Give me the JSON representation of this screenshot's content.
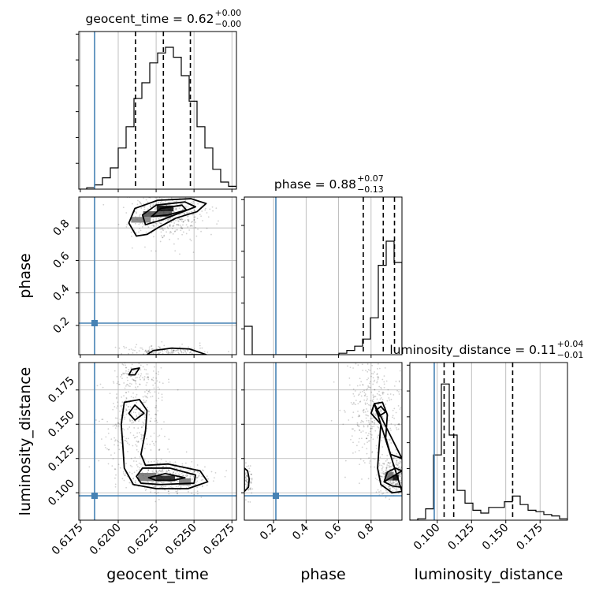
{
  "chart_data": {
    "type": "corner",
    "parameters": [
      "geocent_time",
      "phase",
      "luminosity_distance"
    ],
    "injection_color": "#4682b4",
    "grid": true,
    "titles": [
      {
        "param": "geocent_time",
        "text": "geocent_time = 0.62",
        "plus": "+0.00",
        "minus": "−0.00"
      },
      {
        "param": "phase",
        "text": "phase = 0.88",
        "plus": "+0.07",
        "minus": "−0.13"
      },
      {
        "param": "luminosity_distance",
        "text": "luminosity_distance = 0.11",
        "plus": "+0.04",
        "minus": "−0.01"
      }
    ],
    "axes": {
      "geocent_time": {
        "range": [
          0.6174,
          0.6278
        ],
        "ticks": [
          0.6175,
          0.62,
          0.6225,
          0.625,
          0.6275
        ],
        "tick_labels": [
          "0.6175",
          "0.6200",
          "0.6225",
          "0.6250",
          "0.6275"
        ],
        "label": "geocent_time"
      },
      "phase": {
        "range": [
          0.02,
          0.99
        ],
        "ticks": [
          0.2,
          0.4,
          0.6,
          0.8
        ],
        "tick_labels": [
          "0.2",
          "0.4",
          "0.6",
          "0.8"
        ],
        "label": "phase"
      },
      "luminosity_distance": {
        "range": [
          0.08,
          0.195
        ],
        "ticks": [
          0.1,
          0.125,
          0.15,
          0.175
        ],
        "tick_labels": [
          "0.100",
          "0.125",
          "0.150",
          "0.175"
        ],
        "label": "luminosity_distance"
      }
    },
    "injection": {
      "geocent_time": 0.61844,
      "phase": 0.214,
      "luminosity_distance": 0.0978
    },
    "quantiles": {
      "geocent_time": [
        0.62114,
        0.62298,
        0.62476
      ],
      "phase": [
        0.752,
        0.875,
        0.944
      ],
      "luminosity_distance": [
        0.105,
        0.112,
        0.155
      ]
    },
    "histograms": {
      "geocent_time": {
        "edges": [
          0.6174,
          0.61792,
          0.61844,
          0.61896,
          0.61948,
          0.62,
          0.62052,
          0.62104,
          0.62156,
          0.62208,
          0.6226,
          0.62312,
          0.62364,
          0.62416,
          0.62468,
          0.6252,
          0.62572,
          0.62624,
          0.62676,
          0.62728,
          0.6278
        ],
        "counts": [
          0.0,
          0.01,
          0.03,
          0.08,
          0.15,
          0.29,
          0.44,
          0.64,
          0.75,
          0.89,
          0.96,
          1.0,
          0.93,
          0.8,
          0.62,
          0.44,
          0.29,
          0.14,
          0.05,
          0.02
        ]
      },
      "phase": {
        "edges": [
          0.02,
          0.0685,
          0.117,
          0.1655,
          0.214,
          0.2625,
          0.311,
          0.3595,
          0.408,
          0.4565,
          0.505,
          0.5535,
          0.602,
          0.6505,
          0.699,
          0.7475,
          0.796,
          0.8445,
          0.893,
          0.9415,
          0.99
        ],
        "counts": [
          0.2,
          0.0,
          0.0,
          0.0,
          0.0,
          0.0,
          0.0,
          0.0,
          0.0,
          0.0,
          0.0,
          0.0,
          0.01,
          0.03,
          0.06,
          0.11,
          0.26,
          0.63,
          0.8,
          0.65
        ]
      },
      "luminosity_distance": {
        "edges": [
          0.08,
          0.08575,
          0.0915,
          0.09725,
          0.103,
          0.10875,
          0.1145,
          0.12025,
          0.126,
          0.13175,
          0.1375,
          0.14325,
          0.149,
          0.15475,
          0.1605,
          0.16625,
          0.172,
          0.17775,
          0.1835,
          0.18925,
          0.195
        ],
        "counts": [
          0.0,
          0.01,
          0.08,
          0.46,
          0.96,
          0.6,
          0.21,
          0.12,
          0.07,
          0.05,
          0.09,
          0.09,
          0.13,
          0.17,
          0.11,
          0.07,
          0.06,
          0.04,
          0.03,
          0.01
        ]
      }
    },
    "pairs": [
      {
        "x": "geocent_time",
        "y": "phase",
        "scatter_blobs": [
          {
            "cx": 0.6232,
            "cy": 0.89,
            "sx": 0.0012,
            "sy": 0.075,
            "n": 170
          },
          {
            "cx": 0.6228,
            "cy": 0.04,
            "sx": 0.0014,
            "sy": 0.02,
            "n": 60
          }
        ],
        "density_cells": [
          {
            "x": 0.6231,
            "y": 0.92,
            "w": 0.0011,
            "h": 0.035,
            "shade": 0.0
          },
          {
            "x": 0.6226,
            "y": 0.885,
            "w": 0.0019,
            "h": 0.035,
            "shade": 0.35
          },
          {
            "x": 0.6215,
            "y": 0.85,
            "w": 0.0013,
            "h": 0.035,
            "shade": 0.6
          }
        ],
        "contours": [
          [
            [
              0.6212,
              0.75
            ],
            [
              0.6207,
              0.83
            ],
            [
              0.6211,
              0.92
            ],
            [
              0.6226,
              0.97
            ],
            [
              0.6248,
              0.98
            ],
            [
              0.6258,
              0.95
            ],
            [
              0.6252,
              0.9
            ],
            [
              0.6238,
              0.86
            ],
            [
              0.6226,
              0.8
            ],
            [
              0.6219,
              0.76
            ]
          ],
          [
            [
              0.6218,
              0.82
            ],
            [
              0.6216,
              0.88
            ],
            [
              0.6225,
              0.94
            ],
            [
              0.6244,
              0.96
            ],
            [
              0.6251,
              0.93
            ],
            [
              0.624,
              0.89
            ],
            [
              0.6229,
              0.85
            ]
          ],
          [
            [
              0.6222,
              0.87
            ],
            [
              0.6228,
              0.92
            ],
            [
              0.6242,
              0.94
            ],
            [
              0.6245,
              0.91
            ],
            [
              0.6233,
              0.88
            ]
          ],
          [
            [
              0.6219,
              0.02
            ],
            [
              0.6223,
              0.045
            ],
            [
              0.6235,
              0.06
            ],
            [
              0.6247,
              0.055
            ],
            [
              0.6255,
              0.03
            ],
            [
              0.6258,
              0.02
            ]
          ],
          [
            [
              0.6208,
              0.99
            ],
            [
              0.6203,
              1.02
            ]
          ]
        ]
      },
      {
        "x": "geocent_time",
        "y": "luminosity_distance",
        "scatter_blobs": [
          {
            "cx": 0.6233,
            "cy": 0.111,
            "sx": 0.0013,
            "sy": 0.006,
            "n": 140
          },
          {
            "cx": 0.621,
            "cy": 0.155,
            "sx": 0.0011,
            "sy": 0.018,
            "n": 110
          },
          {
            "cx": 0.6212,
            "cy": 0.185,
            "sx": 0.0008,
            "sy": 0.006,
            "n": 30
          }
        ],
        "density_cells": [
          {
            "x": 0.6231,
            "y": 0.1105,
            "w": 0.0013,
            "h": 0.004,
            "shade": 0.1
          },
          {
            "x": 0.6219,
            "y": 0.1115,
            "w": 0.0012,
            "h": 0.006,
            "shade": 0.55
          },
          {
            "x": 0.6244,
            "y": 0.108,
            "w": 0.0008,
            "h": 0.005,
            "shade": 0.55
          }
        ],
        "contours": [
          [
            [
              0.6202,
              0.15
            ],
            [
              0.6204,
              0.166
            ],
            [
              0.6214,
              0.168
            ],
            [
              0.6219,
              0.16
            ],
            [
              0.6218,
              0.145
            ],
            [
              0.6215,
              0.128
            ],
            [
              0.6218,
              0.12
            ],
            [
              0.6233,
              0.121
            ],
            [
              0.6254,
              0.116
            ],
            [
              0.6259,
              0.108
            ],
            [
              0.6246,
              0.103
            ],
            [
              0.6225,
              0.103
            ],
            [
              0.621,
              0.106
            ],
            [
              0.6204,
              0.118
            ],
            [
              0.6203,
              0.135
            ]
          ],
          [
            [
              0.6207,
              0.158
            ],
            [
              0.6211,
              0.164
            ],
            [
              0.6217,
              0.158
            ],
            [
              0.6211,
              0.153
            ]
          ],
          [
            [
              0.6212,
              0.112
            ],
            [
              0.6216,
              0.118
            ],
            [
              0.6234,
              0.118
            ],
            [
              0.6251,
              0.113
            ],
            [
              0.625,
              0.107
            ],
            [
              0.6228,
              0.106
            ],
            [
              0.6215,
              0.107
            ]
          ],
          [
            [
              0.622,
              0.111
            ],
            [
              0.6231,
              0.114
            ],
            [
              0.6244,
              0.111
            ],
            [
              0.6236,
              0.109
            ],
            [
              0.6225,
              0.109
            ]
          ],
          [
            [
              0.6207,
              0.186
            ],
            [
              0.6209,
              0.19
            ],
            [
              0.6214,
              0.191
            ],
            [
              0.6211,
              0.186
            ]
          ]
        ]
      },
      {
        "x": "phase",
        "y": "luminosity_distance",
        "scatter_blobs": [
          {
            "cx": 0.94,
            "cy": 0.112,
            "sx": 0.05,
            "sy": 0.006,
            "n": 110
          },
          {
            "cx": 0.82,
            "cy": 0.16,
            "sx": 0.09,
            "sy": 0.02,
            "n": 130
          },
          {
            "cx": 0.04,
            "cy": 0.108,
            "sx": 0.02,
            "sy": 0.006,
            "n": 25
          }
        ],
        "density_cells": [
          {
            "x": 0.95,
            "y": 0.111,
            "w": 0.04,
            "h": 0.004,
            "shade": 0.0
          },
          {
            "x": 0.91,
            "y": 0.112,
            "w": 0.05,
            "h": 0.006,
            "shade": 0.5
          }
        ],
        "contours": [
          [
            [
              0.82,
              0.165
            ],
            [
              0.8,
              0.158
            ],
            [
              0.86,
              0.15
            ],
            [
              0.85,
              0.135
            ],
            [
              0.84,
              0.118
            ],
            [
              0.86,
              0.106
            ],
            [
              0.93,
              0.1
            ],
            [
              0.99,
              0.101
            ]
          ],
          [
            [
              0.99,
              0.125
            ],
            [
              0.92,
              0.128
            ],
            [
              0.89,
              0.14
            ],
            [
              0.9,
              0.157
            ],
            [
              0.87,
              0.166
            ],
            [
              0.82,
              0.165
            ]
          ],
          [
            [
              0.83,
              0.16
            ],
            [
              0.86,
              0.163
            ],
            [
              0.89,
              0.159
            ],
            [
              0.85,
              0.156
            ]
          ],
          [
            [
              0.88,
              0.108
            ],
            [
              0.9,
              0.115
            ],
            [
              0.95,
              0.118
            ],
            [
              0.99,
              0.116
            ]
          ],
          [
            [
              0.99,
              0.104
            ],
            [
              0.93,
              0.105
            ],
            [
              0.88,
              0.108
            ]
          ],
          [
            [
              0.02,
              0.101
            ],
            [
              0.045,
              0.104
            ],
            [
              0.05,
              0.11
            ],
            [
              0.04,
              0.116
            ],
            [
              0.02,
              0.118
            ]
          ]
        ]
      }
    ]
  }
}
